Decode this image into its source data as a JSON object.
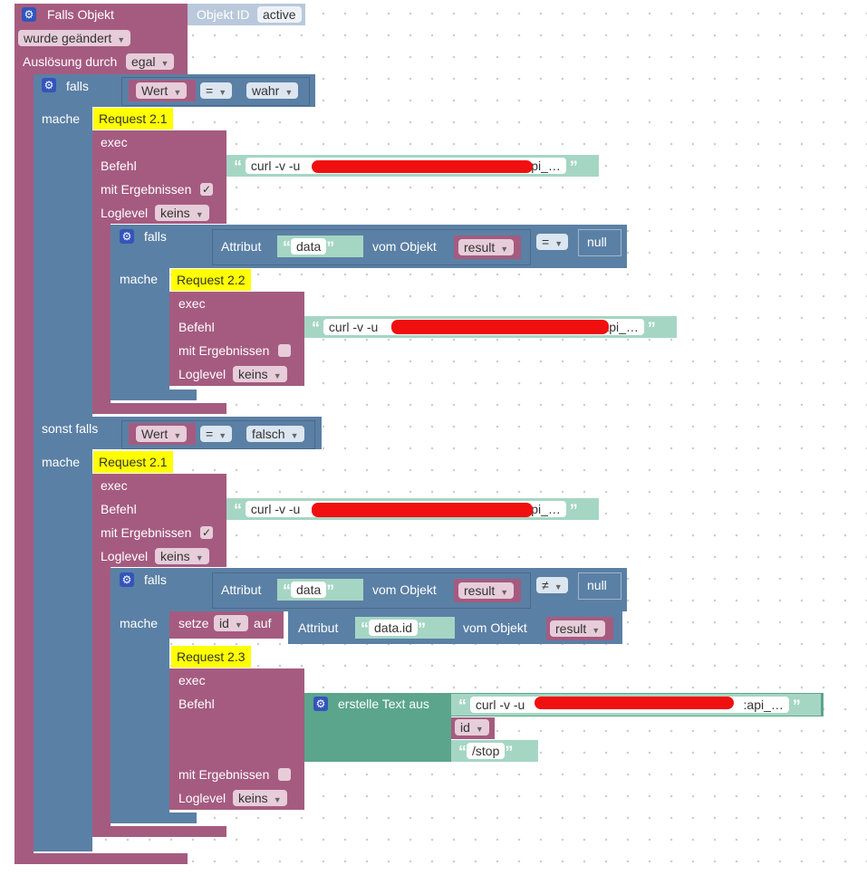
{
  "top_event": {
    "label": "Falls Objekt",
    "objekt_id_label": "Objekt ID",
    "objekt_id_value": "active",
    "trigger": "wurde geändert",
    "ausloesung_label": "Auslösung durch",
    "ausloesung_value": "egal"
  },
  "if1": {
    "falls": "falls",
    "mache": "mache",
    "sonst_falls": "sonst falls",
    "cond1": {
      "left": "Wert",
      "op": "=",
      "right": "wahr"
    },
    "cond2": {
      "left": "Wert",
      "op": "=",
      "right": "falsch"
    }
  },
  "req21a": {
    "header": "Request 2.1",
    "exec": "exec",
    "befehl": "Befehl",
    "befehl_value": "curl -v -u",
    "befehl_tail": ":api_…",
    "mit_ergebnissen": "mit Ergebnissen",
    "checked": "✓",
    "loglevel": "Loglevel",
    "loglevel_value": "keins"
  },
  "if2": {
    "falls": "falls",
    "mache": "mache",
    "attribut": "Attribut",
    "attr_value": "data",
    "vom_objekt": "vom Objekt",
    "obj_value": "result",
    "op": "=",
    "right": "null"
  },
  "req22": {
    "header": "Request 2.2",
    "exec": "exec",
    "befehl": "Befehl",
    "befehl_value": "curl -v -u",
    "befehl_tail": ":api_…",
    "mit_ergebnissen": "mit Ergebnissen",
    "loglevel": "Loglevel",
    "loglevel_value": "keins"
  },
  "req21b": {
    "header": "Request 2.1",
    "exec": "exec",
    "befehl": "Befehl",
    "befehl_value": "curl -v -u",
    "befehl_tail": ":api_…",
    "mit_ergebnissen": "mit Ergebnissen",
    "checked": "✓",
    "loglevel": "Loglevel",
    "loglevel_value": "keins"
  },
  "if3": {
    "falls": "falls",
    "mache": "mache",
    "attribut": "Attribut",
    "attr_value": "data",
    "vom_objekt": "vom Objekt",
    "obj_value": "result",
    "op": "≠",
    "right": "null"
  },
  "setze": {
    "label": "setze",
    "var": "id",
    "auf": "auf",
    "attribut": "Attribut",
    "attr_value": "data.id",
    "vom_objekt": "vom Objekt",
    "obj_value": "result"
  },
  "req23": {
    "header": "Request 2.3",
    "exec": "exec",
    "befehl": "Befehl",
    "text_join": "erstelle Text aus",
    "part1": "curl -v -u",
    "part1_tail": ":api_…",
    "part2": "id",
    "part3": "/stop",
    "mit_ergebnissen": "mit Ergebnissen",
    "loglevel": "Loglevel",
    "loglevel_value": "keins"
  },
  "icons": {
    "gear": "gear-icon",
    "dropdown": "dropdown-arrow-icon"
  },
  "colors": {
    "event": "#a55b80",
    "logic": "#5b80a5",
    "text": "#5ba58c",
    "highlight": "#ffff00",
    "redaction": "#f01010"
  }
}
